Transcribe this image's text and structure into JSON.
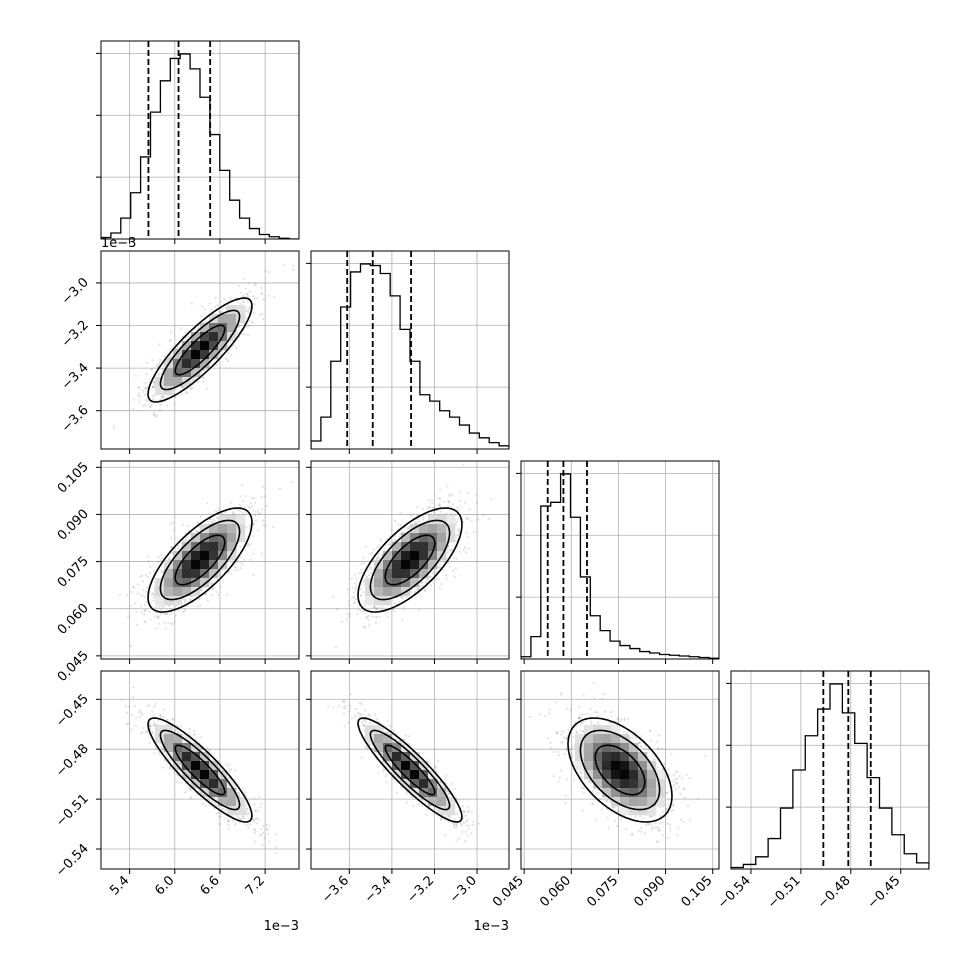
{
  "chart_data": {
    "type": "corner",
    "grid": true,
    "parameters": [
      {
        "ticks": [
          5.4,
          6.0,
          6.6,
          7.2
        ],
        "tick_labels": [
          "5.4",
          "6.0",
          "6.6",
          "7.2"
        ],
        "range": [
          5.02,
          7.65
        ],
        "offset_label": "1e−3"
      },
      {
        "ticks": [
          -3.6,
          -3.4,
          -3.2,
          -3.0
        ],
        "tick_labels": [
          "−3.6",
          "−3.4",
          "−3.2",
          "−3.0"
        ],
        "range": [
          -3.78,
          -2.85
        ],
        "offset_label": "1e−3"
      },
      {
        "ticks": [
          0.045,
          0.06,
          0.075,
          0.09,
          0.105
        ],
        "tick_labels": [
          "0.045",
          "0.060",
          "0.075",
          "0.090",
          "0.105"
        ],
        "range": [
          0.044,
          0.107
        ],
        "offset_label": ""
      },
      {
        "ticks": [
          -0.54,
          -0.51,
          -0.48,
          -0.45
        ],
        "tick_labels": [
          "−0.54",
          "−0.51",
          "−0.48",
          "−0.45"
        ],
        "range": [
          -0.552,
          -0.433
        ],
        "offset_label": ""
      }
    ],
    "marginals": [
      {
        "bin_edges_range": [
          5.02,
          7.65
        ],
        "counts": [
          2,
          8,
          28,
          62,
          110,
          170,
          212,
          242,
          248,
          228,
          190,
          140,
          92,
          52,
          28,
          14,
          6,
          3,
          1,
          0
        ],
        "quantiles": [
          5.65,
          6.05,
          6.47
        ]
      },
      {
        "bin_edges_range": [
          -3.78,
          -2.85
        ],
        "counts": [
          10,
          40,
          110,
          178,
          222,
          232,
          230,
          220,
          192,
          150,
          110,
          68,
          60,
          48,
          40,
          30,
          20,
          14,
          8,
          4
        ],
        "quantiles": [
          -3.61,
          -3.49,
          -3.31
        ]
      },
      {
        "bin_edges_range": [
          0.044,
          0.107
        ],
        "counts": [
          3,
          30,
          205,
          210,
          248,
          190,
          110,
          58,
          38,
          24,
          18,
          14,
          10,
          8,
          6,
          5,
          4,
          3,
          2,
          1
        ],
        "quantiles": [
          0.0525,
          0.0575,
          0.065
        ]
      },
      {
        "bin_edges_range": [
          -0.552,
          -0.433
        ],
        "counts": [
          2,
          6,
          16,
          40,
          80,
          130,
          175,
          210,
          243,
          205,
          165,
          120,
          80,
          45,
          20,
          8
        ],
        "quantiles": [
          -0.4965,
          -0.4815,
          -0.468
        ]
      }
    ],
    "correlations": [
      [
        1.0,
        0.85,
        0.72,
        -0.88
      ],
      [
        0.85,
        1.0,
        0.68,
        -0.9
      ],
      [
        0.72,
        0.68,
        1.0,
        -0.5
      ],
      [
        -0.88,
        -0.9,
        -0.5,
        1.0
      ]
    ],
    "levels": [
      0.118,
      0.393,
      0.675,
      0.864
    ]
  }
}
